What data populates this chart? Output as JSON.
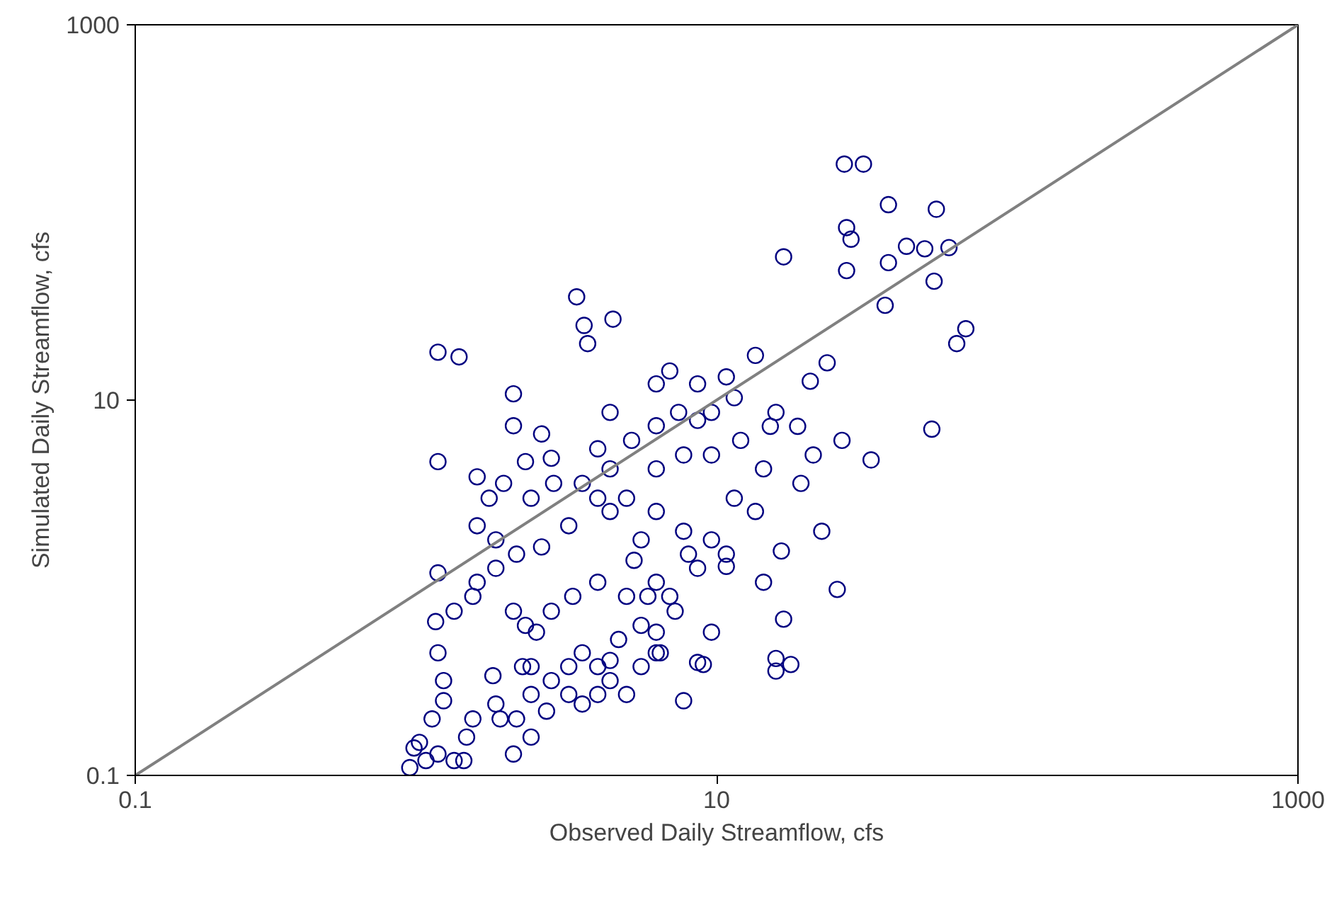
{
  "chart_data": {
    "type": "scatter",
    "xlabel": "Observed Daily Streamflow, cfs",
    "ylabel": "Simulated Daily Streamflow, cfs",
    "log": "xy",
    "xlim": [
      0.1,
      1000
    ],
    "ylim": [
      0.1,
      1000
    ],
    "xticks": [
      0.1,
      10,
      1000
    ],
    "yticks": [
      0.1,
      10,
      1000
    ],
    "grid": false,
    "series": [
      {
        "marker": "circle",
        "color": "#000080",
        "x": [
          27.5,
          32,
          57,
          39,
          28,
          29,
          52,
          45,
          63,
          28,
          17,
          56,
          39,
          38,
          67,
          72,
          55,
          34,
          26,
          6.9,
          3.3,
          3.5,
          3.6,
          4.4,
          1.1,
          1.3,
          1.1,
          2.0,
          2.0,
          2.5,
          2.7,
          1.5,
          1.65,
          2.3,
          2.75,
          3.45,
          4.3,
          5.1,
          6.2,
          7.4,
          8.6,
          9.6,
          4.3,
          5.5,
          6.2,
          7.7,
          8.6,
          10.8,
          14.5,
          16.7,
          16,
          16,
          18,
          17,
          27,
          23,
          16,
          11.5,
          14.5,
          21,
          24,
          9.6,
          8.6,
          9.0,
          7.7,
          6.4,
          5.5,
          4.6,
          7.2,
          6.2,
          4.9,
          3.9,
          3.2,
          2.7,
          2.4,
          2.3,
          2.3,
          2.6,
          2.7,
          3.1,
          3.45,
          3.9,
          4.3,
          4.9,
          5.5,
          6.2,
          2.2,
          2.0,
          1.74,
          1.5,
          1.45,
          1.25,
          1.1,
          1.08,
          1.1,
          1.15,
          1.15,
          1.05,
          0.95,
          0.88,
          0.91,
          1.0,
          1.1,
          1.25,
          1.38,
          1.45,
          1.35,
          1.7,
          1.74,
          1.8,
          2.05,
          2.0,
          2.3,
          2.15,
          3.1,
          3.45,
          3.9,
          4.3,
          6.2,
          6.9,
          8.0,
          9.6,
          10.8,
          13.6,
          15.3,
          19,
          19.5,
          21.5,
          12.1,
          11.5,
          13.6,
          10.8,
          8.6,
          9.6,
          6.2,
          4.3,
          3.9,
          3.9,
          3.1,
          2.5,
          2.05,
          1.74,
          1.5,
          1.85,
          2.2,
          5.2,
          5.8,
          4.9,
          6.2,
          7.7
        ],
        "values": [
          181,
          181,
          104,
          110,
          83,
          72,
          64,
          66,
          65,
          49,
          58,
          43,
          54,
          32,
          20,
          24,
          7,
          4.8,
          0.98,
          14.3,
          35.5,
          25,
          20,
          27,
          18,
          17,
          4.7,
          7.3,
          10.8,
          6.6,
          4.9,
          3.9,
          3.0,
          3.0,
          3.6,
          3.6,
          4.3,
          6.1,
          7.3,
          8.6,
          7.8,
          5.1,
          2.55,
          1.8,
          2.55,
          2.0,
          1.27,
          1.3,
          1.07,
          1.57,
          0.42,
          0.36,
          0.39,
          0.68,
          6.1,
          2.0,
          8.6,
          3.0,
          4.3,
          12.6,
          15.8,
          0.58,
          0.4,
          0.39,
          0.25,
          0.45,
          0.63,
          0.53,
          0.75,
          1.07,
          0.9,
          1.07,
          0.9,
          0.75,
          0.58,
          0.38,
          0.27,
          0.22,
          0.32,
          0.38,
          0.45,
          0.38,
          0.32,
          0.27,
          0.38,
          0.45,
          0.63,
          0.75,
          1.27,
          1.07,
          0.9,
          0.75,
          1.2,
          0.66,
          0.45,
          0.32,
          0.25,
          0.2,
          0.15,
          0.11,
          0.14,
          0.12,
          0.13,
          0.12,
          0.16,
          0.2,
          0.12,
          0.34,
          0.24,
          0.2,
          0.2,
          0.13,
          0.16,
          0.38,
          0.27,
          0.24,
          0.27,
          0.41,
          0.58,
          0.9,
          1.51,
          1.8,
          1.51,
          2.55,
          7.25,
          7.25,
          3.6,
          5.1,
          6.1,
          10.3,
          17.3,
          13.3,
          12.2,
          8.6,
          12.2,
          8.6,
          5.5,
          3.0,
          2.14,
          1.65,
          1.51,
          1.8,
          2.14,
          3.6,
          4.7,
          1.4,
          0.9,
          3.0,
          4.3,
          5.1
        ]
      },
      {
        "type": "line",
        "marker": "none",
        "color": "#808080",
        "x": [
          0.1,
          1000
        ],
        "values": [
          0.1,
          1000
        ]
      }
    ]
  }
}
